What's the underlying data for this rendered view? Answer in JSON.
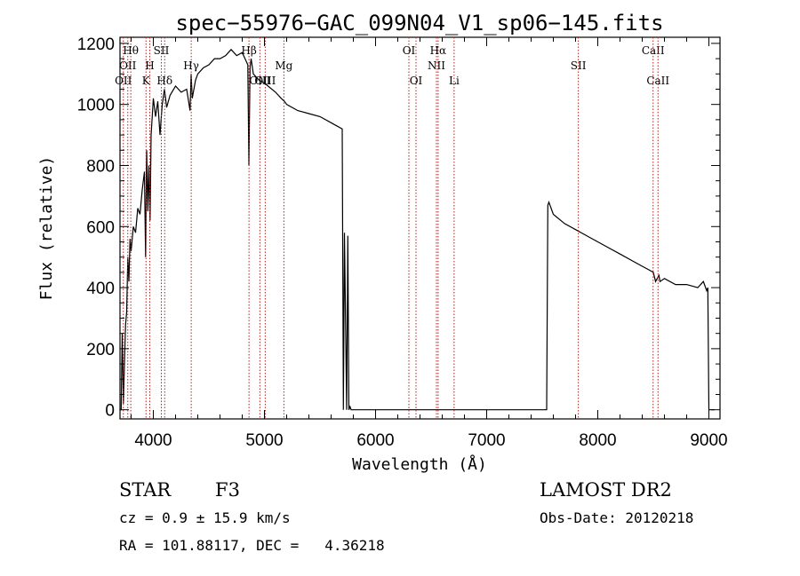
{
  "chart_data": {
    "type": "line",
    "title": "spec−55976−GAC_099N04_V1_sp06−145.fits",
    "xlabel": "Wavelength (Å)",
    "ylabel": "Flux (relative)",
    "xlim": [
      3700,
      9100
    ],
    "ylim": [
      -30,
      1220
    ],
    "xticks": [
      4000,
      5000,
      6000,
      7000,
      8000,
      9000
    ],
    "yticks": [
      0,
      200,
      400,
      600,
      800,
      1000,
      1200
    ],
    "grid": false,
    "line_color": "#000000",
    "marker_color": "#b22222",
    "spectrum": {
      "x": [
        3700,
        3710,
        3720,
        3730,
        3740,
        3750,
        3760,
        3770,
        3780,
        3790,
        3800,
        3820,
        3840,
        3860,
        3880,
        3900,
        3920,
        3930,
        3940,
        3950,
        3960,
        3970,
        3980,
        4000,
        4020,
        4040,
        4060,
        4080,
        4100,
        4120,
        4150,
        4200,
        4250,
        4300,
        4330,
        4340,
        4350,
        4380,
        4400,
        4450,
        4500,
        4550,
        4600,
        4650,
        4700,
        4750,
        4800,
        4850,
        4860,
        4870,
        4880,
        4900,
        4950,
        5000,
        5100,
        5150,
        5180,
        5200,
        5300,
        5400,
        5500,
        5600,
        5650,
        5700,
        5710,
        5720,
        5740,
        5750,
        5760,
        5770,
        5780,
        5800,
        6000,
        6500,
        7000,
        7300,
        7400,
        7500,
        7540,
        7550,
        7560,
        7600,
        7700,
        7800,
        7900,
        8000,
        8100,
        8200,
        8300,
        8400,
        8450,
        8500,
        8520,
        8550,
        8560,
        8600,
        8700,
        8800,
        8900,
        8950,
        8980,
        8990,
        9000,
        9020,
        9050
      ],
      "y": [
        0,
        0,
        250,
        20,
        150,
        280,
        320,
        500,
        420,
        560,
        520,
        600,
        580,
        660,
        640,
        720,
        780,
        500,
        850,
        650,
        800,
        620,
        900,
        1020,
        960,
        1010,
        900,
        1000,
        1050,
        990,
        1030,
        1060,
        1040,
        1050,
        980,
        1100,
        1020,
        1080,
        1100,
        1120,
        1130,
        1150,
        1150,
        1160,
        1180,
        1160,
        1170,
        1130,
        800,
        1120,
        1150,
        1100,
        1080,
        1070,
        1040,
        1020,
        1010,
        1000,
        980,
        970,
        960,
        940,
        930,
        920,
        0,
        580,
        0,
        570,
        0,
        10,
        0,
        0,
        0,
        0,
        0,
        0,
        0,
        0,
        0,
        670,
        680,
        640,
        610,
        590,
        570,
        550,
        530,
        510,
        490,
        470,
        460,
        450,
        420,
        440,
        420,
        430,
        410,
        410,
        400,
        420,
        390,
        400,
        0,
        0,
        0
      ],
      "points": 105
    },
    "line_markers": [
      {
        "x": 3730,
        "label": "OII",
        "row": 3
      },
      {
        "x": 3770,
        "label": "OII",
        "row": 2
      },
      {
        "x": 3797,
        "label": "Hθ",
        "row": 1
      },
      {
        "x": 3934,
        "label": "K",
        "row": 3
      },
      {
        "x": 3968,
        "label": "H",
        "row": 2
      },
      {
        "x": 4072,
        "label": "SII",
        "row": 1
      },
      {
        "x": 4102,
        "label": "Hδ",
        "row": 3
      },
      {
        "x": 4341,
        "label": "Hγ",
        "row": 2
      },
      {
        "x": 4861,
        "label": "Hβ",
        "row": 1
      },
      {
        "x": 4959,
        "label": "OIII",
        "row": 3
      },
      {
        "x": 5007,
        "label": "OIII",
        "row": 3
      },
      {
        "x": 5175,
        "label": "Mg",
        "row": 2
      },
      {
        "x": 6300,
        "label": "OI",
        "row": 1
      },
      {
        "x": 6364,
        "label": "OI",
        "row": 3
      },
      {
        "x": 6548,
        "label": "NII",
        "row": 2
      },
      {
        "x": 6563,
        "label": "Hα",
        "row": 1
      },
      {
        "x": 6707,
        "label": "Li",
        "row": 3
      },
      {
        "x": 7825,
        "label": "SII",
        "row": 2
      },
      {
        "x": 8498,
        "label": "CaII",
        "row": 1
      },
      {
        "x": 8542,
        "label": "CaII",
        "row": 3
      }
    ]
  },
  "info": {
    "object_class": "STAR",
    "subclass": "F3",
    "survey": "LAMOST DR2",
    "cz_line": "cz = 0.9 ± 15.9 km/s",
    "obs_date_line": "Obs-Date: 20120218",
    "coords_line": "RA = 101.88117, DEC =   4.36218"
  }
}
